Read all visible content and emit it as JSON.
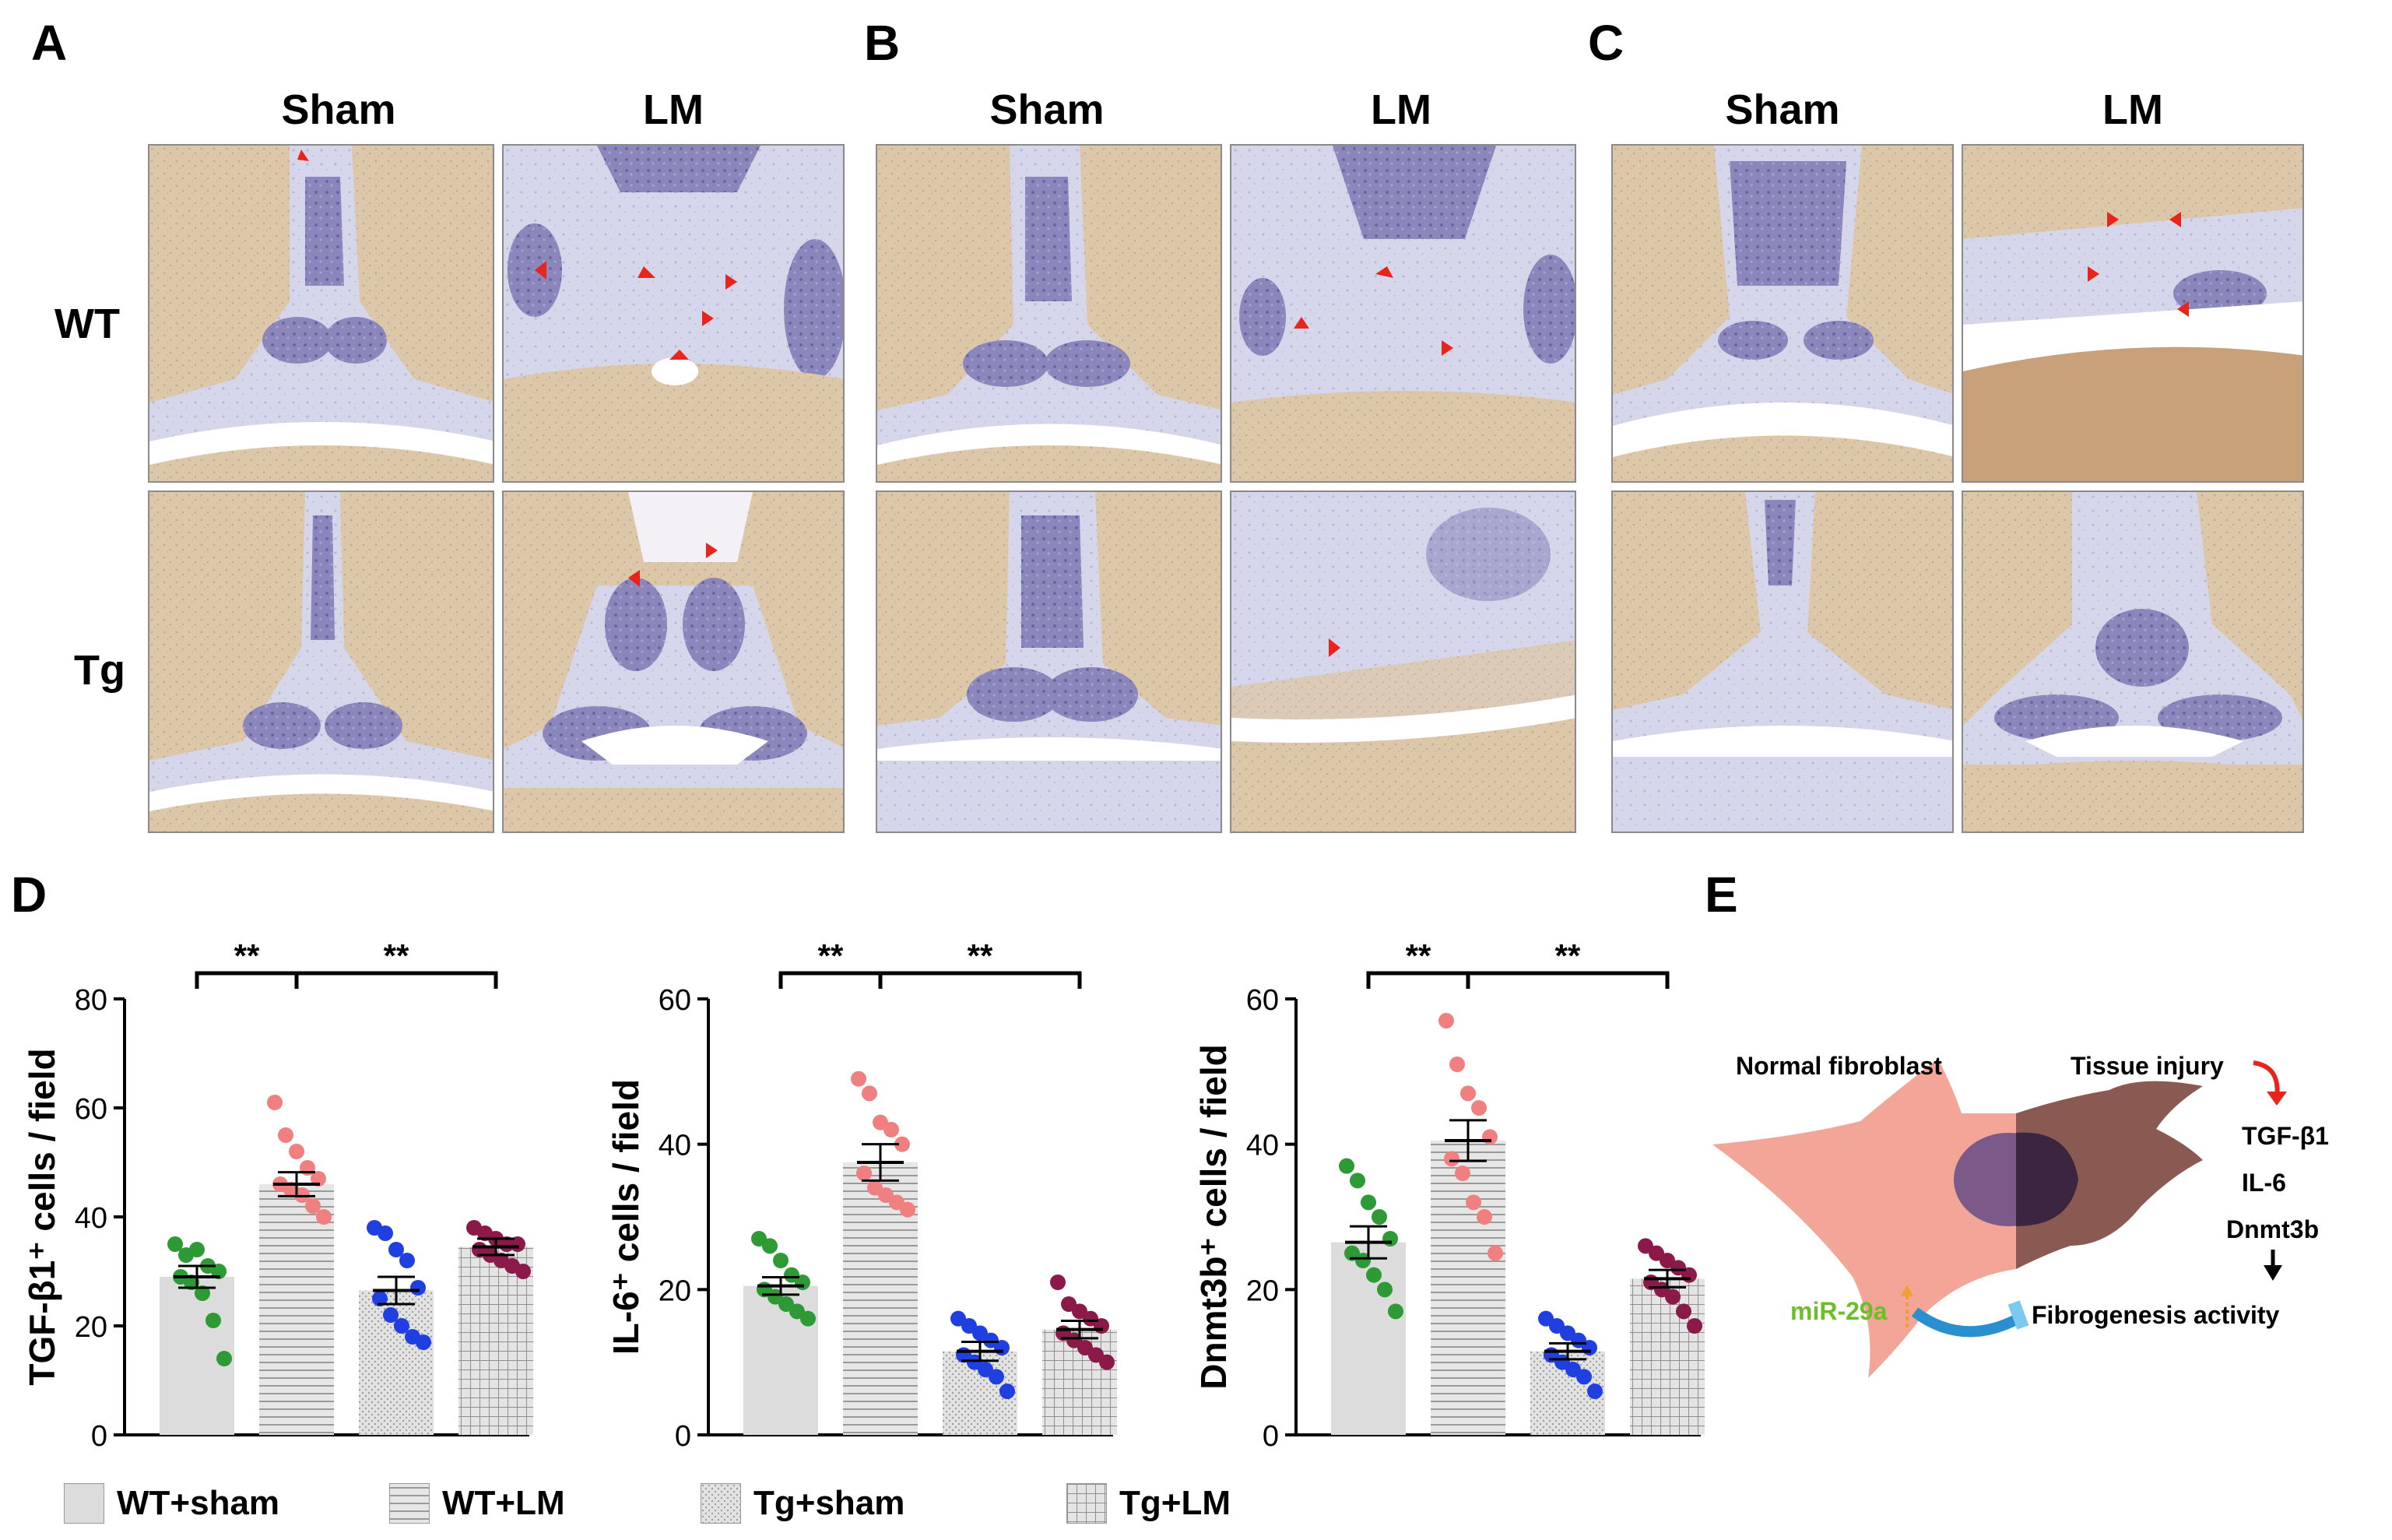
{
  "panel_letters": [
    "A",
    "B",
    "C",
    "D",
    "E"
  ],
  "micrograph_panels": [
    {
      "letter": "A",
      "columns": [
        "Sham",
        "LM"
      ],
      "rows": [
        "WT",
        "Tg"
      ]
    },
    {
      "letter": "B",
      "columns": [
        "Sham",
        "LM"
      ]
    },
    {
      "letter": "C",
      "columns": [
        "Sham",
        "LM"
      ]
    }
  ],
  "legend": [
    {
      "label": "WT+sham",
      "pattern": "solid"
    },
    {
      "label": "WT+LM",
      "pattern": "horizontal"
    },
    {
      "label": "Tg+sham",
      "pattern": "dots"
    },
    {
      "label": "Tg+LM",
      "pattern": "grid"
    }
  ],
  "colors": {
    "wt_sham": "#2e9a35",
    "wt_lm": "#f08080",
    "tg_sham": "#1f3fe0",
    "tg_lm": "#8b1a4a",
    "bar_fill": "#dcdcdc",
    "arrow": "#e8251c"
  },
  "chart_data": [
    {
      "type": "bar",
      "ylabel": "TGF-β1⁺ cells / field",
      "ylim": [
        0,
        80
      ],
      "yticks": [
        "0",
        "20",
        "40",
        "60",
        "80"
      ],
      "categories": [
        "WT+sham",
        "WT+LM",
        "Tg+sham",
        "Tg+LM"
      ],
      "values": [
        29,
        46,
        26.5,
        34.5
      ],
      "sem": [
        2,
        2.2,
        2.5,
        1.5
      ],
      "points": [
        [
          35,
          33,
          34,
          31,
          30,
          29,
          28,
          26,
          21,
          14
        ],
        [
          61,
          55,
          52,
          49,
          47,
          46,
          45,
          44,
          42,
          40
        ],
        [
          38,
          37,
          34,
          32,
          27,
          25,
          22,
          20,
          18,
          17
        ],
        [
          38,
          37,
          36,
          35,
          35,
          34,
          33,
          32,
          31,
          30
        ]
      ],
      "significance": [
        {
          "from": 0,
          "to": 1,
          "label": "**"
        },
        {
          "from": 1,
          "to": 3,
          "label": "**"
        }
      ]
    },
    {
      "type": "bar",
      "ylabel": "IL-6⁺ cells / field",
      "ylim": [
        0,
        60
      ],
      "yticks": [
        "0",
        "20",
        "40",
        "60"
      ],
      "categories": [
        "WT+sham",
        "WT+LM",
        "Tg+sham",
        "Tg+LM"
      ],
      "values": [
        20.5,
        37.5,
        11.5,
        14.5
      ],
      "sem": [
        1.2,
        2.5,
        1.3,
        1.2
      ],
      "points": [
        [
          27,
          26,
          24,
          22,
          21,
          20,
          19,
          18,
          17,
          16
        ],
        [
          49,
          47,
          43,
          42,
          40,
          36,
          34,
          33,
          32,
          31
        ],
        [
          16,
          15,
          14,
          13,
          12,
          11,
          10,
          9,
          8,
          6
        ],
        [
          21,
          18,
          17,
          16,
          15,
          14,
          13,
          12,
          11,
          10
        ]
      ],
      "significance": [
        {
          "from": 0,
          "to": 1,
          "label": "**"
        },
        {
          "from": 1,
          "to": 3,
          "label": "**"
        }
      ]
    },
    {
      "type": "bar",
      "ylabel": "Dnmt3b⁺ cells / field",
      "ylim": [
        0,
        60
      ],
      "yticks": [
        "0",
        "20",
        "40",
        "60"
      ],
      "categories": [
        "WT+sham",
        "WT+LM",
        "Tg+sham",
        "Tg+LM"
      ],
      "values": [
        26.5,
        40.5,
        11.5,
        21.5
      ],
      "sem": [
        2.2,
        2.8,
        1.1,
        1.2
      ],
      "points": [
        [
          37,
          35,
          32,
          30,
          27,
          25,
          24,
          22,
          20,
          17
        ],
        [
          57,
          51,
          47,
          45,
          41,
          38,
          36,
          32,
          30,
          25
        ],
        [
          16,
          15,
          14,
          13,
          12,
          11,
          10,
          9,
          8,
          6
        ],
        [
          26,
          25,
          24,
          23,
          22,
          21,
          20,
          19,
          17,
          15
        ]
      ],
      "significance": [
        {
          "from": 0,
          "to": 1,
          "label": "**"
        },
        {
          "from": 1,
          "to": 3,
          "label": "**"
        }
      ]
    }
  ],
  "schematic": {
    "normal_fibroblast": "Normal fibroblast",
    "tissue_injury": "Tissue injury",
    "markers": [
      "TGF-β1",
      "IL-6",
      "Dnmt3b"
    ],
    "mirna": "miR-29a",
    "fibrogenesis": "Fibrogenesis activity"
  }
}
